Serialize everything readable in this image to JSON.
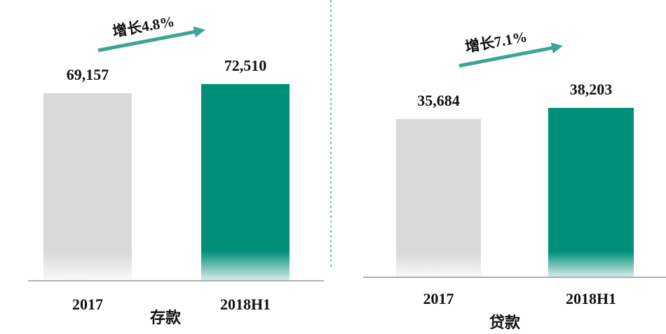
{
  "chart_data": [
    {
      "type": "bar",
      "title": "存款",
      "annotation": "增长4.8%",
      "categories": [
        "2017",
        "2018H1"
      ],
      "values": [
        69157,
        72510
      ],
      "value_labels": [
        "69,157",
        "72,510"
      ],
      "colors": [
        "#d9d9d9",
        "#00907a"
      ],
      "ylim": [
        0,
        80000
      ]
    },
    {
      "type": "bar",
      "title": "贷款",
      "annotation": "增长7.1%",
      "categories": [
        "2017",
        "2018H1"
      ],
      "values": [
        35684,
        38203
      ],
      "value_labels": [
        "35,684",
        "38,203"
      ],
      "colors": [
        "#d9d9d9",
        "#00907a"
      ],
      "ylim": [
        0,
        45000
      ]
    }
  ]
}
